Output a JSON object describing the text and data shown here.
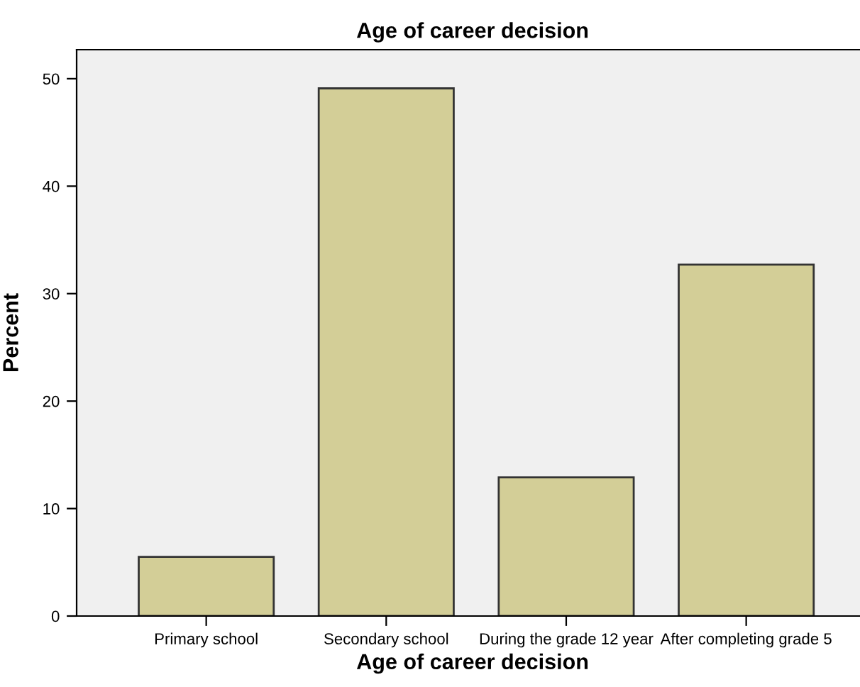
{
  "chart_data": {
    "type": "bar",
    "title": "Age of career decision",
    "xlabel": "Age of career decision",
    "ylabel": "Percent",
    "categories": [
      "Primary school",
      "Secondary school",
      "During the grade 12 year",
      "After completing grade 5"
    ],
    "values": [
      5.5,
      49.1,
      12.9,
      32.7
    ],
    "color": "#d3ce97",
    "ylim": [
      0,
      52.7
    ],
    "yticks": [
      0,
      10,
      20,
      30,
      40,
      50
    ],
    "grid": false,
    "legend": false
  }
}
